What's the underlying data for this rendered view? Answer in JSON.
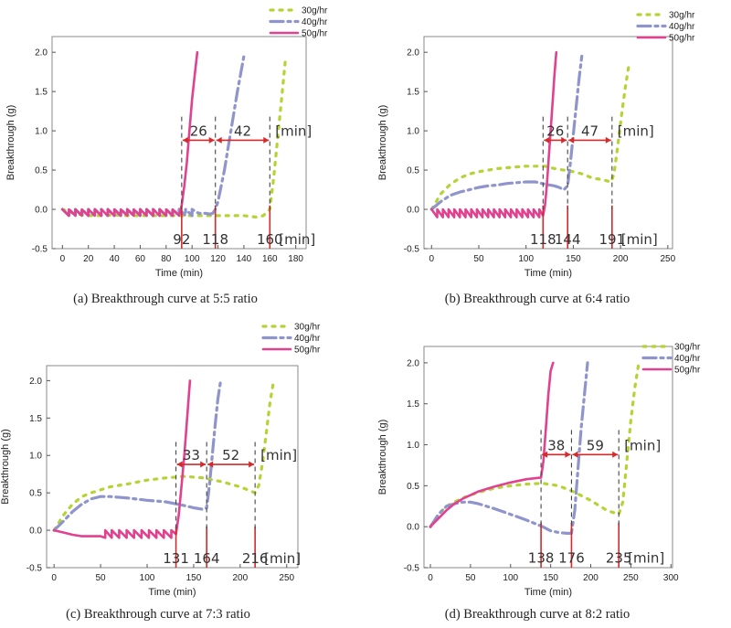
{
  "colors": {
    "30": "#b5d334",
    "40": "#8f95cc",
    "50": "#e0428f",
    "marker": "#d42a2a",
    "guide": "#444444",
    "frame": "#888888"
  },
  "chart_data": [
    {
      "type": "line",
      "caption": "(a) Breakthrough curve at 5:5 ratio",
      "xlabel": "Time (min)",
      "ylabel": "Breakthrough (g)",
      "xlim": [
        -8,
        188
      ],
      "ylim": [
        -0.5,
        2.2
      ],
      "xticks": [
        0,
        20,
        40,
        60,
        80,
        100,
        120,
        140,
        160,
        180
      ],
      "yticks": [
        -0.5,
        0.0,
        0.5,
        1.0,
        1.5,
        2.0
      ],
      "legend": [
        "30g/hr",
        "40g/hr",
        "50g/hr"
      ],
      "breakthrough_times": [
        "92",
        "118",
        "160"
      ],
      "time_unit": "[min]",
      "intervals": [
        "26",
        "42"
      ],
      "bracket_unit": "[min]",
      "series": [
        {
          "name": "50g/hr",
          "x": [
            0,
            5,
            5,
            10,
            10,
            15,
            15,
            20,
            20,
            25,
            25,
            30,
            30,
            35,
            35,
            40,
            40,
            45,
            45,
            50,
            50,
            55,
            55,
            60,
            60,
            65,
            65,
            70,
            70,
            75,
            75,
            80,
            80,
            85,
            85,
            90,
            92,
            94,
            96,
            98,
            100,
            102,
            104
          ],
          "y": [
            0,
            -0.08,
            0,
            -0.08,
            0,
            -0.08,
            0,
            -0.08,
            0,
            -0.08,
            0,
            -0.08,
            0,
            -0.08,
            0,
            -0.08,
            0,
            -0.08,
            0,
            -0.08,
            0,
            -0.08,
            0,
            -0.08,
            0,
            -0.08,
            0,
            -0.08,
            0,
            -0.08,
            0,
            -0.08,
            0,
            -0.08,
            0,
            -0.08,
            0.05,
            0.3,
            0.6,
            1.0,
            1.4,
            1.7,
            2.0
          ]
        },
        {
          "name": "40g/hr",
          "x": [
            0,
            5,
            5,
            10,
            10,
            15,
            15,
            20,
            20,
            25,
            25,
            30,
            30,
            35,
            35,
            40,
            40,
            45,
            45,
            50,
            50,
            55,
            55,
            60,
            60,
            65,
            65,
            70,
            70,
            75,
            75,
            80,
            80,
            85,
            85,
            90,
            90,
            95,
            95,
            100,
            100,
            105,
            110,
            114,
            116,
            118,
            120,
            125,
            130,
            135,
            140
          ],
          "y": [
            0,
            -0.08,
            0,
            -0.08,
            0,
            -0.08,
            0,
            -0.08,
            0,
            -0.08,
            0,
            -0.08,
            0,
            -0.08,
            0,
            -0.08,
            0,
            -0.08,
            0,
            -0.08,
            0,
            -0.08,
            0,
            -0.08,
            0,
            -0.08,
            0,
            -0.08,
            0,
            -0.08,
            0,
            -0.08,
            0,
            -0.08,
            0,
            -0.08,
            0,
            -0.08,
            0,
            -0.08,
            0,
            -0.05,
            -0.05,
            -0.06,
            -0.05,
            0.0,
            0.1,
            0.5,
            1.0,
            1.5,
            1.95
          ]
        },
        {
          "name": "30g/hr",
          "x": [
            0,
            10,
            20,
            30,
            40,
            50,
            60,
            70,
            80,
            90,
            100,
            110,
            120,
            130,
            140,
            150,
            155,
            160,
            163,
            166,
            169,
            172
          ],
          "y": [
            0,
            -0.06,
            -0.08,
            -0.08,
            -0.07,
            -0.08,
            -0.08,
            -0.08,
            -0.08,
            -0.08,
            -0.08,
            -0.08,
            -0.08,
            -0.08,
            -0.08,
            -0.1,
            -0.08,
            0.0,
            0.4,
            0.9,
            1.4,
            1.9
          ]
        }
      ]
    },
    {
      "type": "line",
      "caption": "(b) Breakthrough curve at 6:4 ratio",
      "xlabel": "Time (min)",
      "ylabel": "Breakthrough (g)",
      "xlim": [
        -8,
        255
      ],
      "ylim": [
        -0.5,
        2.2
      ],
      "xticks": [
        0,
        50,
        100,
        150,
        200,
        250
      ],
      "yticks": [
        -0.5,
        0.0,
        0.5,
        1.0,
        1.5,
        2.0
      ],
      "legend": [
        "30g/hr",
        "40g/hr",
        "50g/hr"
      ],
      "breakthrough_times": [
        "118",
        "144",
        "191"
      ],
      "time_unit": "[min]",
      "intervals": [
        "26",
        "47"
      ],
      "bracket_unit": "[min]",
      "series": [
        {
          "name": "50g/hr",
          "x": [
            0,
            6,
            6,
            12,
            12,
            18,
            18,
            24,
            24,
            30,
            30,
            36,
            36,
            42,
            42,
            48,
            48,
            54,
            54,
            60,
            60,
            66,
            66,
            72,
            72,
            78,
            78,
            84,
            84,
            90,
            90,
            96,
            96,
            102,
            102,
            108,
            108,
            114,
            114,
            118,
            120,
            122,
            124,
            126,
            128,
            130,
            132
          ],
          "y": [
            0,
            -0.1,
            0,
            -0.1,
            0,
            -0.1,
            0,
            -0.1,
            0,
            -0.1,
            0,
            -0.1,
            0,
            -0.1,
            0,
            -0.1,
            0,
            -0.1,
            0,
            -0.1,
            0,
            -0.1,
            0,
            -0.1,
            0,
            -0.1,
            0,
            -0.1,
            0,
            -0.1,
            0,
            -0.1,
            0,
            -0.1,
            0,
            -0.1,
            0,
            -0.1,
            0,
            -0.08,
            0.05,
            0.3,
            0.65,
            1.0,
            1.35,
            1.7,
            2.0
          ]
        },
        {
          "name": "40g/hr",
          "x": [
            0,
            10,
            20,
            30,
            40,
            50,
            60,
            70,
            80,
            90,
            100,
            110,
            120,
            130,
            135,
            140,
            144,
            147,
            150,
            153,
            156,
            159
          ],
          "y": [
            0,
            0.1,
            0.18,
            0.22,
            0.25,
            0.28,
            0.3,
            0.31,
            0.33,
            0.34,
            0.35,
            0.35,
            0.32,
            0.3,
            0.28,
            0.25,
            0.3,
            0.6,
            0.95,
            1.3,
            1.65,
            1.95
          ]
        },
        {
          "name": "30g/hr",
          "x": [
            0,
            10,
            20,
            30,
            40,
            50,
            60,
            70,
            80,
            90,
            100,
            110,
            120,
            130,
            140,
            150,
            160,
            170,
            180,
            190,
            193,
            197,
            201,
            205,
            209
          ],
          "y": [
            0,
            0.2,
            0.32,
            0.4,
            0.45,
            0.48,
            0.5,
            0.52,
            0.53,
            0.54,
            0.55,
            0.55,
            0.55,
            0.52,
            0.5,
            0.48,
            0.45,
            0.4,
            0.38,
            0.35,
            0.45,
            0.8,
            1.2,
            1.55,
            1.85
          ]
        }
      ]
    },
    {
      "type": "line",
      "caption": "(c) Breakthrough curve at 7:3 ratio",
      "xlabel": "Time (min)",
      "ylabel": "Breakthrough (g)",
      "xlim": [
        -8,
        262
      ],
      "ylim": [
        -0.5,
        2.2
      ],
      "xticks": [
        0,
        50,
        100,
        150,
        200,
        250
      ],
      "yticks": [
        -0.5,
        0.0,
        0.5,
        1.0,
        1.5,
        2.0
      ],
      "legend": [
        "30g/hr",
        "40g/hr",
        "50g/hr"
      ],
      "breakthrough_times": [
        "131",
        "164",
        "216"
      ],
      "time_unit": "[min]",
      "intervals": [
        "33",
        "52"
      ],
      "bracket_unit": "[min]",
      "series": [
        {
          "name": "50g/hr",
          "x": [
            0,
            10,
            20,
            30,
            40,
            50,
            55,
            55,
            62,
            62,
            70,
            70,
            78,
            78,
            86,
            86,
            94,
            94,
            102,
            102,
            110,
            110,
            118,
            118,
            126,
            126,
            131,
            134,
            137,
            140,
            143,
            146
          ],
          "y": [
            0,
            -0.03,
            -0.06,
            -0.08,
            -0.08,
            -0.08,
            -0.1,
            0.0,
            -0.1,
            0.0,
            -0.1,
            0.0,
            -0.1,
            0.0,
            -0.1,
            0.0,
            -0.1,
            0.0,
            -0.1,
            0.0,
            -0.1,
            0.0,
            -0.1,
            0.0,
            -0.1,
            0.0,
            -0.05,
            0.2,
            0.6,
            1.0,
            1.5,
            2.0
          ]
        },
        {
          "name": "40g/hr",
          "x": [
            0,
            10,
            20,
            30,
            40,
            50,
            60,
            80,
            100,
            120,
            140,
            150,
            160,
            164,
            167,
            170,
            173,
            176,
            179
          ],
          "y": [
            0,
            0.12,
            0.25,
            0.35,
            0.42,
            0.45,
            0.45,
            0.43,
            0.4,
            0.38,
            0.33,
            0.3,
            0.28,
            0.3,
            0.6,
            1.0,
            1.4,
            1.75,
            2.0
          ]
        },
        {
          "name": "30g/hr",
          "x": [
            0,
            10,
            20,
            30,
            40,
            60,
            80,
            100,
            120,
            140,
            160,
            180,
            200,
            216,
            220,
            224,
            228,
            232,
            236
          ],
          "y": [
            0,
            0.2,
            0.35,
            0.45,
            0.5,
            0.58,
            0.62,
            0.67,
            0.7,
            0.72,
            0.7,
            0.65,
            0.58,
            0.5,
            0.6,
            0.9,
            1.3,
            1.7,
            2.0
          ]
        }
      ]
    },
    {
      "type": "line",
      "caption": "(d) Breakthrough curve at 8:2 ratio",
      "xlabel": "Time (min)",
      "ylabel": "Breakthrough (g)",
      "xlim": [
        -8,
        302
      ],
      "ylim": [
        -0.5,
        2.2
      ],
      "xticks": [
        0,
        50,
        100,
        150,
        200,
        250,
        300
      ],
      "yticks": [
        -0.5,
        0.0,
        0.5,
        1.0,
        1.5,
        2.0
      ],
      "legend": [
        "30g/hr",
        "40g/hr",
        "50g/hr"
      ],
      "breakthrough_times": [
        "138",
        "176",
        "235"
      ],
      "time_unit": "[min]",
      "intervals": [
        "38",
        "59"
      ],
      "bracket_unit": "[min]",
      "series": [
        {
          "name": "50g/hr",
          "x": [
            0,
            10,
            20,
            30,
            40,
            60,
            80,
            100,
            120,
            138,
            141,
            144,
            147,
            150,
            153
          ],
          "y": [
            0,
            0.1,
            0.2,
            0.28,
            0.34,
            0.43,
            0.49,
            0.54,
            0.58,
            0.6,
            0.8,
            1.2,
            1.6,
            1.9,
            2.0
          ]
        },
        {
          "name": "40g/hr",
          "x": [
            0,
            10,
            20,
            30,
            40,
            50,
            60,
            80,
            100,
            120,
            140,
            150,
            160,
            170,
            176,
            180,
            184,
            188,
            192,
            196
          ],
          "y": [
            0,
            0.15,
            0.25,
            0.28,
            0.3,
            0.3,
            0.28,
            0.22,
            0.15,
            0.08,
            0.0,
            -0.05,
            -0.07,
            -0.08,
            -0.08,
            0.2,
            0.7,
            1.2,
            1.6,
            2.0
          ]
        },
        {
          "name": "30g/hr",
          "x": [
            0,
            10,
            20,
            30,
            40,
            60,
            80,
            100,
            120,
            140,
            160,
            180,
            200,
            220,
            235,
            240,
            245,
            250,
            255,
            260
          ],
          "y": [
            0,
            0.15,
            0.25,
            0.3,
            0.35,
            0.42,
            0.47,
            0.5,
            0.52,
            0.53,
            0.5,
            0.42,
            0.32,
            0.2,
            0.15,
            0.3,
            0.8,
            1.3,
            1.7,
            2.0
          ]
        }
      ]
    }
  ]
}
